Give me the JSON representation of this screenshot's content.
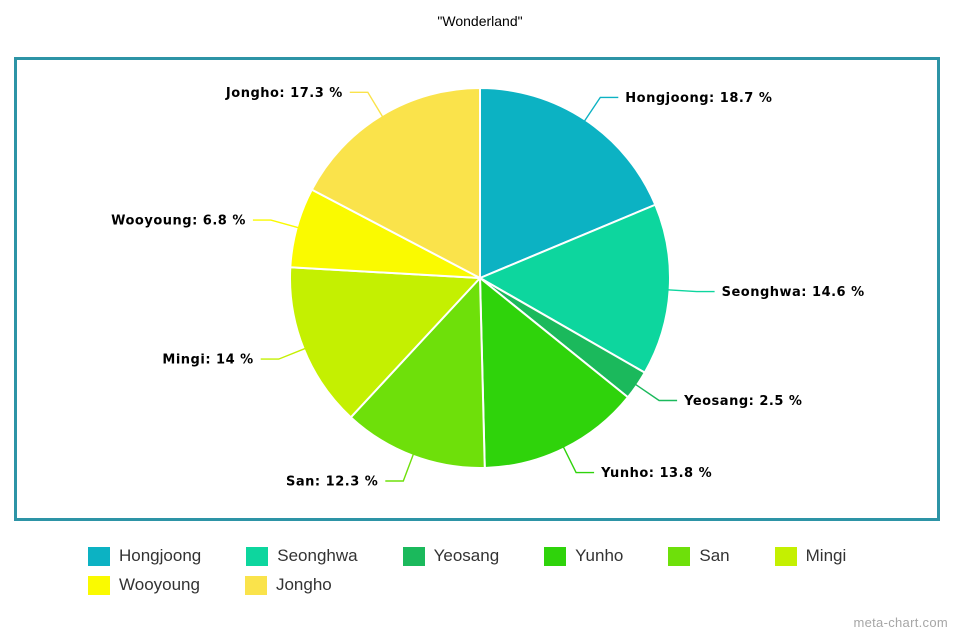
{
  "page": {
    "watermark": "meta-chart.com"
  },
  "frame": {
    "border_color": "#2D94A6"
  },
  "chart_data": {
    "type": "pie",
    "title": "\"Wonderland\"",
    "categories": [
      "Hongjoong",
      "Seonghwa",
      "Yeosang",
      "Yunho",
      "San",
      "Mingi",
      "Wooyoung",
      "Jongho"
    ],
    "values": [
      18.7,
      14.6,
      2.5,
      13.8,
      12.3,
      14,
      6.8,
      17.3
    ],
    "unit": "%",
    "colors": [
      "#0CB2C3",
      "#0DD69E",
      "#1BB95C",
      "#2FD30B",
      "#6EE00A",
      "#C4F001",
      "#FAFA00",
      "#FAE34B"
    ],
    "labels": [
      "Hongjoong: 18.7 %",
      "Seonghwa: 14.6 %",
      "Yeosang: 2.5 %",
      "Yunho: 13.8 %",
      "San: 12.3 %",
      "Mingi: 14 %",
      "Wooyoung: 6.8 %",
      "Jongho: 17.3 %"
    ],
    "start_angle": 0,
    "direction": "clockwise",
    "legend_position": "bottom",
    "slice_border_color": "#ffffff"
  }
}
